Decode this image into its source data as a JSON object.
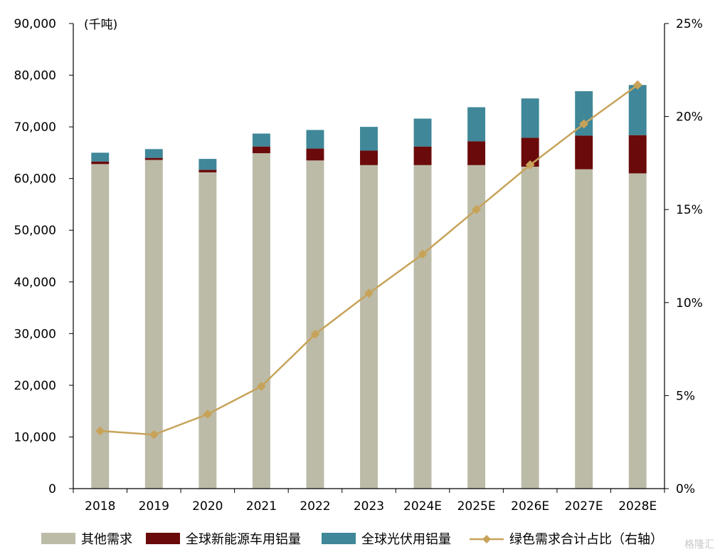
{
  "chart_data": {
    "type": "bar",
    "stacked": true,
    "unit_label": "(千吨)",
    "categories": [
      "2018",
      "2019",
      "2020",
      "2021",
      "2022",
      "2023",
      "2024E",
      "2025E",
      "2026E",
      "2027E",
      "2028E"
    ],
    "series": [
      {
        "name": "其他需求",
        "type": "bar",
        "axis": "left",
        "color": "#bcbba8",
        "values": [
          62800,
          63600,
          61200,
          64900,
          63500,
          62600,
          62600,
          62600,
          62300,
          61800,
          61000
        ]
      },
      {
        "name": "全球新能源车用铝量",
        "type": "bar",
        "axis": "left",
        "color": "#6b0a0a",
        "values": [
          500,
          400,
          500,
          1300,
          2300,
          2800,
          3600,
          4600,
          5600,
          6500,
          7400
        ]
      },
      {
        "name": "全球光伏用铝量",
        "type": "bar",
        "axis": "left",
        "color": "#3f8799",
        "values": [
          1700,
          1700,
          2100,
          2500,
          3600,
          4600,
          5400,
          6600,
          7600,
          8600,
          9700
        ]
      },
      {
        "name": "绿色需求合计占比（右轴）",
        "type": "line",
        "axis": "right",
        "color": "#c7a35a",
        "values": [
          3.1,
          2.9,
          4.0,
          5.5,
          8.3,
          10.5,
          12.6,
          15.0,
          17.4,
          19.6,
          21.7
        ]
      }
    ],
    "left_axis": {
      "min": 0,
      "max": 90000,
      "step": 10000,
      "tick_labels": [
        "0",
        "10,000",
        "20,000",
        "30,000",
        "40,000",
        "50,000",
        "60,000",
        "70,000",
        "80,000",
        "90,000"
      ]
    },
    "right_axis": {
      "min": 0,
      "max": 25,
      "step": 5,
      "tick_labels": [
        "0%",
        "5%",
        "10%",
        "15%",
        "20%",
        "25%"
      ]
    },
    "grid": false,
    "legend_position": "bottom"
  },
  "watermark": "格隆汇"
}
